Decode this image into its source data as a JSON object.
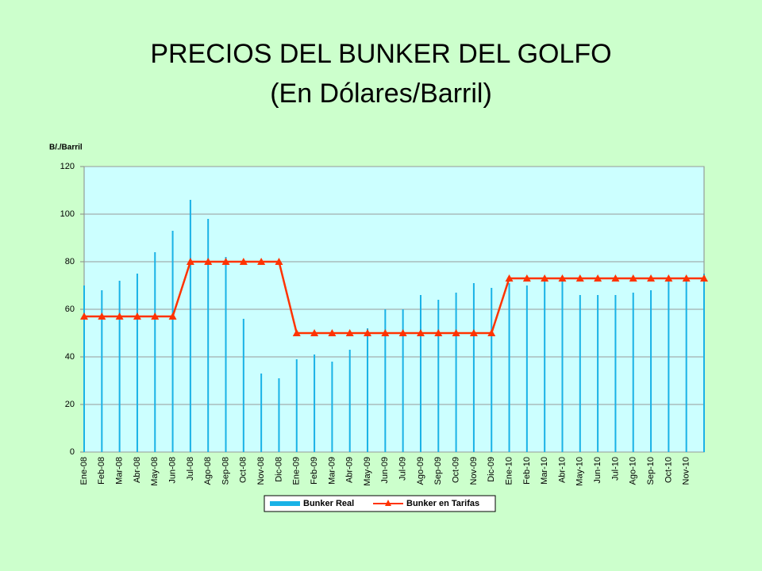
{
  "chart_data": {
    "type": "bar_line",
    "title": "PRECIOS DEL BUNKER DEL GOLFO",
    "subtitle": "(En Dólares/Barril)",
    "y_label": "B/./Barril",
    "categories": [
      "Ene-08",
      "Feb-08",
      "Mar-08",
      "Abr-08",
      "May-08",
      "Jun-08",
      "Jul-08",
      "Ago-08",
      "Sep-08",
      "Oct-08",
      "Nov-08",
      "Dic-08",
      "Ene-09",
      "Feb-09",
      "Mar-09",
      "Abr-09",
      "May-09",
      "Jun-09",
      "Jul-09",
      "Ago-09",
      "Sep-09",
      "Oct-09",
      "Nov-09",
      "Dic-09",
      "Ene-10",
      "Feb-10",
      "Mar-10",
      "Abr-10",
      "May-10",
      "Jun-10",
      "Jul-10",
      "Ago-10",
      "Sep-10",
      "Oct-10",
      "Nov-10",
      null
    ],
    "series": [
      {
        "name": "Bunker Real",
        "type": "bar",
        "color": "#19b2e6",
        "values": [
          70,
          68,
          72,
          75,
          84,
          93,
          106,
          98,
          82,
          56,
          33,
          31,
          39,
          41,
          38,
          43,
          52,
          60,
          60,
          66,
          64,
          67,
          71,
          69,
          71,
          70,
          72,
          73,
          66,
          66,
          66,
          67,
          68,
          72,
          72,
          75
        ]
      },
      {
        "name": "Bunker en Tarifas",
        "type": "line",
        "color": "#ff3300",
        "values": [
          57,
          57,
          57,
          57,
          57,
          57,
          80,
          80,
          80,
          80,
          80,
          80,
          50,
          50,
          50,
          50,
          50,
          50,
          50,
          50,
          50,
          50,
          50,
          50,
          73,
          73,
          73,
          73,
          73,
          73,
          73,
          73,
          73,
          73,
          73,
          73
        ]
      }
    ],
    "ylim": [
      0,
      120
    ],
    "yticks": [
      0,
      20,
      40,
      60,
      80,
      100,
      120
    ],
    "grid": true
  }
}
